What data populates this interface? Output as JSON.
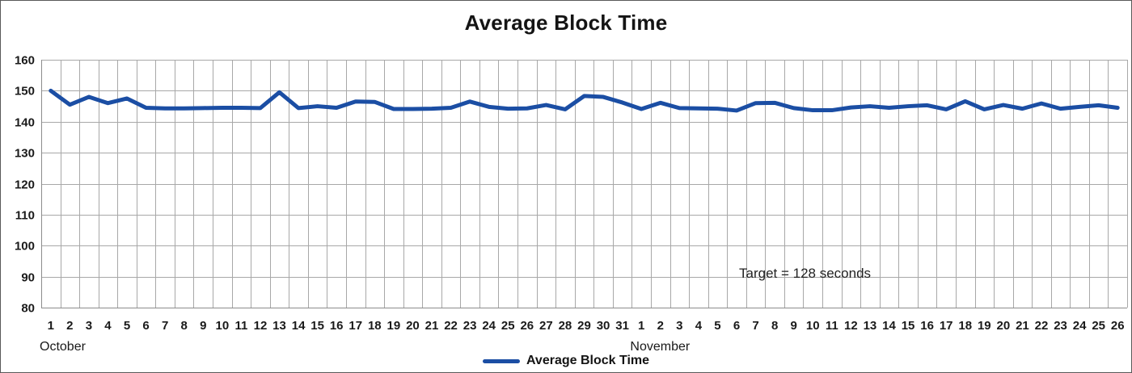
{
  "chart_data": {
    "type": "line",
    "title": "Average Block Time",
    "ylabel": "",
    "xlabel": "",
    "ylim": [
      80,
      160
    ],
    "y_axis": {
      "ticks": [
        160,
        150,
        140,
        130,
        120,
        110,
        100,
        90,
        80
      ]
    },
    "x_axis": {
      "groups": [
        {
          "month": "October",
          "day_labels": [
            1,
            2,
            3,
            4,
            5,
            6,
            7,
            8,
            9,
            10,
            11,
            12,
            13,
            14,
            15,
            16,
            17,
            18,
            19,
            20,
            21,
            22,
            23,
            24,
            25,
            26,
            27,
            28,
            29,
            30,
            31
          ]
        },
        {
          "month": "November",
          "day_labels": [
            1,
            2,
            3,
            4,
            5,
            6,
            7,
            8,
            9,
            10,
            11,
            12,
            13,
            14,
            15,
            16,
            17,
            18,
            19,
            20,
            21,
            22,
            23,
            24,
            25,
            26
          ]
        }
      ]
    },
    "series": [
      {
        "name": "Average Block Time",
        "color": "#1B4EA4",
        "values": [
          150,
          145.5,
          148,
          146,
          147.5,
          144.5,
          144.3,
          144.3,
          144.4,
          144.5,
          144.5,
          144.4,
          149.5,
          144.4,
          145,
          144.5,
          146.5,
          146.4,
          144.1,
          144.1,
          144.2,
          144.5,
          146.5,
          144.8,
          144.2,
          144.3,
          145.4,
          144,
          148.3,
          148,
          146.2,
          144.1,
          146.1,
          144.4,
          144.3,
          144.2,
          143.6,
          146,
          146.1,
          144.4,
          143.7,
          143.7,
          144.6,
          145,
          144.5,
          145,
          145.3,
          144,
          146.6,
          144,
          145.4,
          144.2,
          145.9,
          144.2,
          144.8,
          145.3,
          144.5
        ]
      }
    ],
    "annotation": {
      "text": "Target = 128 seconds"
    },
    "legend": {
      "label": "Average Block Time",
      "position": "bottom-center"
    },
    "grid": {
      "horizontal": true,
      "vertical": true
    },
    "colors": {
      "line": "#1B4EA4",
      "grid": "#A8A8A8",
      "axis": "#8C8C8C",
      "text": "#1A1A1A"
    }
  }
}
